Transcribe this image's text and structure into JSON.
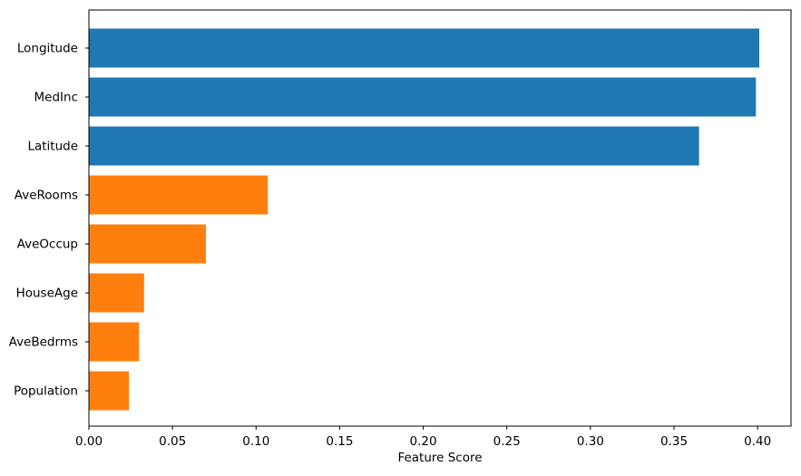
{
  "figure": {
    "background_color": "#ffffff",
    "title": ""
  },
  "chart_data": {
    "type": "bar",
    "orientation": "horizontal",
    "title": "",
    "xlabel": "Feature Score",
    "ylabel": "",
    "categories": [
      "Longitude",
      "MedInc",
      "Latitude",
      "AveRooms",
      "AveOccup",
      "HouseAge",
      "AveBedrms",
      "Population"
    ],
    "values": [
      0.401,
      0.399,
      0.365,
      0.107,
      0.07,
      0.033,
      0.03,
      0.024
    ],
    "bar_colors": [
      "#1f77b4",
      "#1f77b4",
      "#1f77b4",
      "#ff7f0e",
      "#ff7f0e",
      "#ff7f0e",
      "#ff7f0e",
      "#ff7f0e"
    ],
    "color_legend": {
      "blue": "#1f77b4",
      "orange": "#ff7f0e"
    },
    "xlim": [
      0,
      0.42
    ],
    "x_ticks": [
      0.0,
      0.05,
      0.1,
      0.15,
      0.2,
      0.25,
      0.3,
      0.35,
      0.4
    ],
    "x_tick_labels": [
      "0.00",
      "0.05",
      "0.10",
      "0.15",
      "0.20",
      "0.25",
      "0.30",
      "0.35",
      "0.40"
    ],
    "grid": false,
    "legend": "none",
    "spine_color": "#000000",
    "text_color": "#000000"
  }
}
